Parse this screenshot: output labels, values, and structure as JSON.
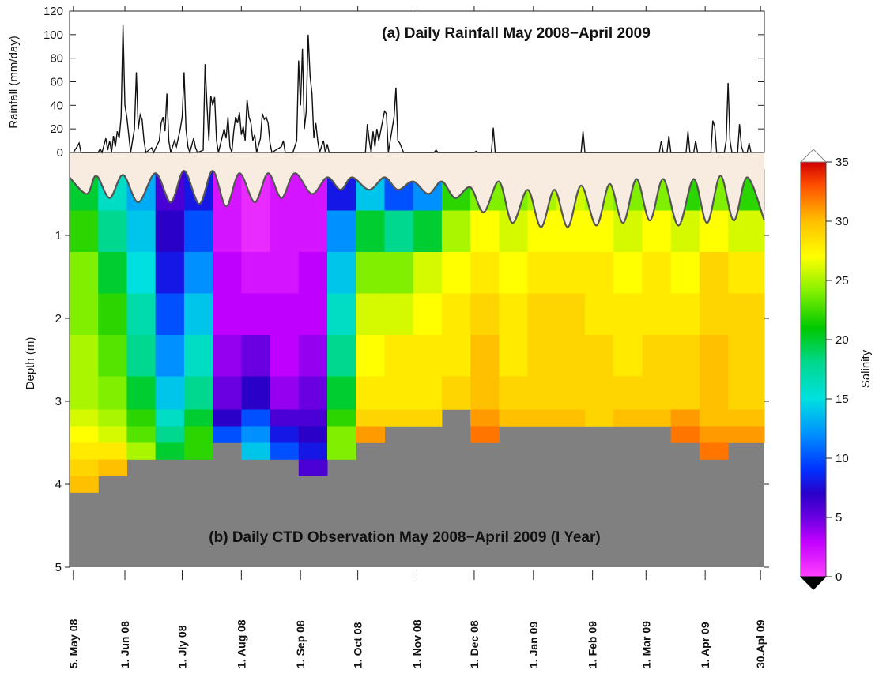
{
  "chart_data": [
    {
      "type": "line",
      "title": "(a) Daily Rainfall  May 2008−April 2009",
      "ylabel": "Rainfall (mm/day)",
      "color": "#111111",
      "xlim": [
        "2008-05-03",
        "2009-05-02"
      ],
      "ylim": [
        0,
        120
      ],
      "yticks": [
        0,
        20,
        40,
        60,
        80,
        100,
        120
      ],
      "x": [
        "2008-05-05",
        "2008-05-07",
        "2008-05-08",
        "2008-05-09",
        "2008-05-18",
        "2008-05-19",
        "2008-05-20",
        "2008-05-22",
        "2008-05-23",
        "2008-05-24",
        "2008-05-25",
        "2008-05-26",
        "2008-05-27",
        "2008-05-28",
        "2008-05-29",
        "2008-05-30",
        "2008-05-31",
        "2008-06-01",
        "2008-06-02",
        "2008-06-03",
        "2008-06-04",
        "2008-06-06",
        "2008-06-07",
        "2008-06-08",
        "2008-06-09",
        "2008-06-10",
        "2008-06-11",
        "2008-06-12",
        "2008-06-15",
        "2008-06-16",
        "2008-06-19",
        "2008-06-20",
        "2008-06-21",
        "2008-06-22",
        "2008-06-23",
        "2008-06-24",
        "2008-06-25",
        "2008-06-27",
        "2008-06-28",
        "2008-06-30",
        "2008-07-01",
        "2008-07-02",
        "2008-07-03",
        "2008-07-04",
        "2008-07-05",
        "2008-07-07",
        "2008-07-08",
        "2008-07-09",
        "2008-07-12",
        "2008-07-13",
        "2008-07-14",
        "2008-07-15",
        "2008-07-16",
        "2008-07-17",
        "2008-07-18",
        "2008-07-19",
        "2008-07-20",
        "2008-07-23",
        "2008-07-24",
        "2008-07-25",
        "2008-07-26",
        "2008-07-27",
        "2008-07-28",
        "2008-07-29",
        "2008-07-30",
        "2008-07-31",
        "2008-08-01",
        "2008-08-02",
        "2008-08-03",
        "2008-08-04",
        "2008-08-05",
        "2008-08-06",
        "2008-08-07",
        "2008-08-08",
        "2008-08-09",
        "2008-08-11",
        "2008-08-12",
        "2008-08-13",
        "2008-08-14",
        "2008-08-15",
        "2008-08-16",
        "2008-08-17",
        "2008-08-22",
        "2008-08-23",
        "2008-08-24",
        "2008-08-28",
        "2008-08-30",
        "2008-08-31",
        "2008-09-01",
        "2008-09-02",
        "2008-09-03",
        "2008-09-04",
        "2008-09-05",
        "2008-09-06",
        "2008-09-07",
        "2008-09-08",
        "2008-09-09",
        "2008-09-10",
        "2008-09-11",
        "2008-09-13",
        "2008-09-14",
        "2008-09-15",
        "2008-09-16",
        "2008-10-05",
        "2008-10-06",
        "2008-10-07",
        "2008-10-08",
        "2008-10-09",
        "2008-10-10",
        "2008-10-11",
        "2008-10-12",
        "2008-10-15",
        "2008-10-16",
        "2008-10-17",
        "2008-10-20",
        "2008-10-21",
        "2008-10-22",
        "2008-10-23",
        "2008-10-24",
        "2008-10-25",
        "2008-11-10",
        "2008-11-11",
        "2008-11-12",
        "2008-12-01",
        "2008-12-02",
        "2008-12-03",
        "2008-12-10",
        "2008-12-11",
        "2008-12-12",
        "2009-01-26",
        "2009-01-27",
        "2009-01-28",
        "2009-03-08",
        "2009-03-09",
        "2009-03-10",
        "2009-03-12",
        "2009-03-13",
        "2009-03-14",
        "2009-03-22",
        "2009-03-23",
        "2009-03-24",
        "2009-03-26",
        "2009-03-27",
        "2009-03-28",
        "2009-04-04",
        "2009-04-05",
        "2009-04-06",
        "2009-04-07",
        "2009-04-11",
        "2009-04-12",
        "2009-04-13",
        "2009-04-14",
        "2009-04-15",
        "2009-04-18",
        "2009-04-19",
        "2009-04-20",
        "2009-04-21",
        "2009-04-23",
        "2009-04-24",
        "2009-04-25"
      ],
      "values": [
        0,
        5,
        8,
        0,
        0,
        3,
        0,
        12,
        2,
        10,
        0,
        14,
        5,
        18,
        12,
        30,
        108,
        40,
        30,
        15,
        0,
        20,
        68,
        20,
        32,
        28,
        10,
        0,
        4,
        0,
        10,
        25,
        30,
        18,
        50,
        10,
        0,
        10,
        5,
        20,
        30,
        68,
        20,
        5,
        0,
        12,
        4,
        0,
        2,
        75,
        40,
        10,
        48,
        40,
        47,
        10,
        0,
        20,
        12,
        30,
        5,
        0,
        18,
        30,
        25,
        34,
        15,
        22,
        10,
        45,
        30,
        25,
        10,
        15,
        0,
        12,
        33,
        28,
        30,
        25,
        8,
        0,
        5,
        10,
        0,
        0,
        10,
        78,
        40,
        88,
        20,
        35,
        100,
        65,
        50,
        12,
        25,
        10,
        0,
        10,
        0,
        7,
        0,
        0,
        24,
        10,
        0,
        18,
        5,
        20,
        10,
        35,
        33,
        0,
        30,
        55,
        10,
        8,
        4,
        0,
        0,
        2,
        0,
        0,
        1,
        0,
        0,
        21,
        0,
        0,
        18,
        0,
        0,
        10,
        0,
        0,
        14,
        0,
        0,
        18,
        0,
        0,
        10,
        0,
        0,
        27,
        22,
        0,
        0,
        10,
        59,
        10,
        0,
        0,
        24,
        5,
        0,
        0,
        8,
        0
      ]
    },
    {
      "type": "heatmap",
      "title": "(b) Daily CTD Observation May 2008−April 2009 (I Year)",
      "ylabel": "Depth (m)",
      "xlim": [
        "2008-05-03",
        "2009-05-02"
      ],
      "ylim": [
        0,
        5
      ],
      "yticks": [
        1,
        2,
        3,
        4,
        5
      ],
      "y_inverted": true,
      "xticks": [
        {
          "value": "2008-05-05",
          "label": "5. May 08"
        },
        {
          "value": "2008-06-01",
          "label": "1. Jun 08"
        },
        {
          "value": "2008-07-01",
          "label": "1. Jly 08"
        },
        {
          "value": "2008-08-01",
          "label": "1. Aug 08"
        },
        {
          "value": "2008-09-01",
          "label": "1. Sep 08"
        },
        {
          "value": "2008-10-01",
          "label": "1. Oct 08"
        },
        {
          "value": "2008-11-01",
          "label": "1. Nov 08"
        },
        {
          "value": "2008-12-01",
          "label": "1. Dec 08"
        },
        {
          "value": "2009-01-01",
          "label": "1. Jan 09"
        },
        {
          "value": "2009-02-01",
          "label": "1. Feb 09"
        },
        {
          "value": "2009-03-01",
          "label": "1. Mar 09"
        },
        {
          "value": "2009-04-01",
          "label": "1. Apr 09"
        },
        {
          "value": "2009-04-30",
          "label": "30.Apl 09"
        }
      ],
      "x_edges": [
        "2008-05-03",
        "2008-05-18",
        "2008-06-02",
        "2008-06-17",
        "2008-07-02",
        "2008-07-17",
        "2008-08-01",
        "2008-08-16",
        "2008-08-31",
        "2008-09-15",
        "2008-09-30",
        "2008-10-15",
        "2008-10-30",
        "2008-11-14",
        "2008-11-29",
        "2008-12-14",
        "2008-12-29",
        "2009-01-13",
        "2009-01-28",
        "2009-02-12",
        "2009-02-27",
        "2009-03-14",
        "2009-03-29",
        "2009-04-13",
        "2009-05-02"
      ],
      "depth_edges": [
        0.2,
        0.7,
        1.2,
        1.7,
        2.2,
        2.7,
        3.1,
        3.3,
        3.5,
        3.7,
        3.9,
        4.1
      ],
      "values": [
        [
          20,
          22,
          24,
          24,
          25,
          25,
          26,
          27,
          28,
          29,
          30
        ],
        [
          16,
          18,
          20,
          22,
          23,
          24,
          25,
          26,
          28,
          30,
          null
        ],
        [
          13,
          14,
          15,
          17,
          18,
          20,
          22,
          23,
          25,
          null,
          null
        ],
        [
          6,
          7,
          8,
          10,
          12,
          14,
          16,
          18,
          20,
          null,
          null
        ],
        [
          8,
          10,
          12,
          14,
          16,
          18,
          20,
          22,
          22,
          null,
          null
        ],
        [
          2,
          2,
          3,
          3,
          4,
          5,
          7,
          10,
          null,
          null,
          null
        ],
        [
          1,
          1,
          2,
          3,
          5,
          7,
          10,
          12,
          14,
          null,
          null
        ],
        [
          2,
          2,
          2,
          3,
          3,
          4,
          6,
          8,
          10,
          null,
          null
        ],
        [
          2,
          2,
          3,
          3,
          4,
          5,
          6,
          7,
          8,
          6,
          null
        ],
        [
          8,
          12,
          14,
          16,
          18,
          20,
          22,
          24,
          24,
          null,
          null
        ],
        [
          14,
          20,
          24,
          26,
          27,
          28,
          29,
          31,
          null,
          null,
          null
        ],
        [
          10,
          18,
          24,
          26,
          28,
          28,
          29,
          null,
          null,
          null,
          null
        ],
        [
          12,
          20,
          26,
          27,
          28,
          28,
          29,
          null,
          null,
          null,
          null
        ],
        [
          22,
          25,
          27,
          28,
          28,
          29,
          null,
          null,
          null,
          null,
          null
        ],
        [
          24,
          27,
          28,
          29,
          30,
          30,
          31,
          32,
          null,
          null,
          null
        ],
        [
          24,
          26,
          27,
          28,
          28,
          29,
          30,
          null,
          null,
          null,
          null
        ],
        [
          25,
          27,
          28,
          29,
          29,
          29,
          30,
          null,
          null,
          null,
          null
        ],
        [
          26,
          27,
          28,
          29,
          29,
          29,
          30,
          null,
          null,
          null,
          null
        ],
        [
          25,
          27,
          28,
          28,
          29,
          29,
          29,
          null,
          null,
          null,
          null
        ],
        [
          24,
          26,
          27,
          28,
          28,
          29,
          30,
          null,
          null,
          null,
          null
        ],
        [
          24,
          27,
          28,
          28,
          29,
          29,
          30,
          null,
          null,
          null,
          null
        ],
        [
          22,
          26,
          27,
          28,
          29,
          29,
          31,
          32,
          null,
          null,
          null
        ],
        [
          24,
          27,
          29,
          29,
          30,
          30,
          30,
          31,
          32,
          null,
          null
        ],
        [
          22,
          26,
          28,
          29,
          29,
          29,
          30,
          31,
          null,
          null,
          null
        ]
      ],
      "surface": {
        "color": "#555555",
        "x": [
          "2008-05-03",
          "2008-05-12",
          "2008-05-17",
          "2008-05-24",
          "2008-05-31",
          "2008-06-08",
          "2008-06-17",
          "2008-06-25",
          "2008-07-02",
          "2008-07-10",
          "2008-07-17",
          "2008-07-24",
          "2008-07-31",
          "2008-08-08",
          "2008-08-15",
          "2008-08-22",
          "2008-08-29",
          "2008-09-07",
          "2008-09-15",
          "2008-09-22",
          "2008-09-28",
          "2008-10-07",
          "2008-10-15",
          "2008-10-22",
          "2008-10-30",
          "2008-11-07",
          "2008-11-14",
          "2008-11-21",
          "2008-11-29",
          "2008-12-06",
          "2008-12-14",
          "2008-12-21",
          "2008-12-29",
          "2009-01-05",
          "2009-01-12",
          "2009-01-19",
          "2009-01-26",
          "2009-02-03",
          "2009-02-10",
          "2009-02-17",
          "2009-02-24",
          "2009-03-03",
          "2009-03-10",
          "2009-03-18",
          "2009-03-26",
          "2009-04-02",
          "2009-04-09",
          "2009-04-16",
          "2009-04-23",
          "2009-05-02"
        ],
        "values": [
          0.3,
          0.5,
          0.28,
          0.55,
          0.27,
          0.6,
          0.25,
          0.6,
          0.22,
          0.62,
          0.22,
          0.65,
          0.25,
          0.6,
          0.25,
          0.55,
          0.25,
          0.5,
          0.3,
          0.45,
          0.3,
          0.45,
          0.3,
          0.45,
          0.35,
          0.5,
          0.35,
          0.55,
          0.42,
          0.72,
          0.35,
          0.85,
          0.45,
          0.9,
          0.45,
          0.9,
          0.4,
          0.88,
          0.38,
          0.85,
          0.32,
          0.82,
          0.32,
          0.88,
          0.32,
          0.85,
          0.28,
          0.82,
          0.3,
          0.82
        ]
      },
      "colorbar": {
        "label": "Salinity",
        "lim": [
          0,
          35
        ],
        "ticks": [
          0,
          5,
          10,
          15,
          20,
          25,
          30,
          35
        ],
        "over_color": "#ffffff",
        "under_color": "#000000",
        "colorscale": [
          [
            0,
            "#ff40ff"
          ],
          [
            3,
            "#c000ff"
          ],
          [
            5,
            "#6a00e0"
          ],
          [
            7,
            "#2a00c8"
          ],
          [
            9,
            "#0030ff"
          ],
          [
            12,
            "#0090ff"
          ],
          [
            15,
            "#00e0e0"
          ],
          [
            18,
            "#00d890"
          ],
          [
            21,
            "#00c800"
          ],
          [
            24,
            "#80f000"
          ],
          [
            27,
            "#ffff00"
          ],
          [
            30,
            "#ffc000"
          ],
          [
            33,
            "#ff5000"
          ],
          [
            35,
            "#d00000"
          ]
        ]
      },
      "background_color": "#808080",
      "air_color": "#f8ebe0"
    }
  ]
}
